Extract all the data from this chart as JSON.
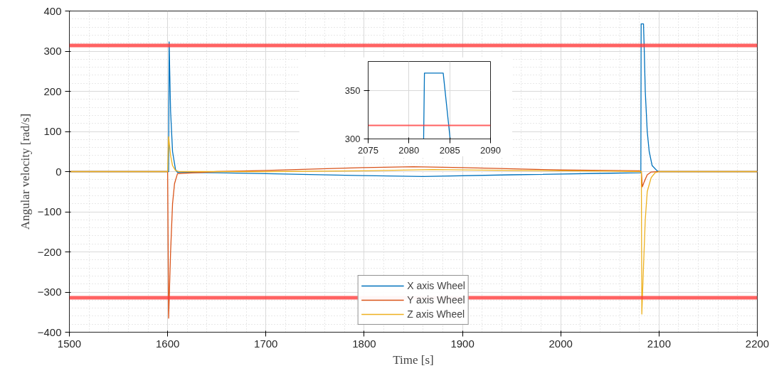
{
  "chart_data": [
    {
      "type": "line",
      "xlabel": "Time [s]",
      "ylabel": "Angular velocity [rad/s]",
      "xlim": [
        1500,
        2200
      ],
      "xticks": [
        1500,
        1600,
        1700,
        1800,
        1900,
        2000,
        2100,
        2200
      ],
      "ylim": [
        -400,
        400
      ],
      "yticks": [
        -400,
        -300,
        -200,
        -100,
        0,
        100,
        200,
        300,
        400
      ],
      "grid": true,
      "legend": "bottom",
      "ref_lines": [
        {
          "axis": "y",
          "value": 314,
          "color": "#ff3b3b"
        },
        {
          "axis": "y",
          "value": -314,
          "color": "#ff3b3b"
        }
      ],
      "series": [
        {
          "name": "X axis Wheel",
          "color": "#0072bd",
          "x": [
            1500,
            1600,
            1601,
            1601.5,
            1603,
            1605,
            1608,
            1610,
            1650,
            1700,
            1800,
            1860,
            1950,
            2050,
            2081.5,
            2081.8,
            2084.2,
            2085,
            2086,
            2088,
            2090,
            2093,
            2098,
            2100,
            2200
          ],
          "values": [
            0,
            0,
            0,
            323,
            150,
            50,
            5,
            -2,
            -3,
            -5,
            -10,
            -12,
            -8,
            -4,
            -3,
            368,
            368,
            300,
            200,
            100,
            50,
            15,
            2,
            0,
            0
          ]
        },
        {
          "name": "Y axis Wheel",
          "color": "#d95319",
          "x": [
            1500,
            1600,
            1601,
            1603,
            1605,
            1607,
            1610,
            1650,
            1700,
            1800,
            1850,
            1900,
            2000,
            2080,
            2082,
            2083,
            2085,
            2088,
            2092,
            2100,
            2200
          ],
          "values": [
            0,
            0,
            -365,
            -200,
            -80,
            -30,
            -5,
            0,
            3,
            10,
            12,
            10,
            4,
            2,
            0,
            -38,
            -25,
            -8,
            -1,
            0,
            0
          ]
        },
        {
          "name": "Z axis Wheel",
          "color": "#edb120",
          "x": [
            1500,
            1600,
            1601,
            1603,
            1605,
            1608,
            1612,
            1700,
            1800,
            1870,
            1950,
            2050,
            2082,
            2082.5,
            2084,
            2086,
            2088,
            2092,
            2096,
            2100,
            2200
          ],
          "values": [
            0,
            0,
            87,
            40,
            15,
            3,
            0,
            0,
            2,
            5,
            3,
            1,
            0,
            -355,
            -250,
            -120,
            -50,
            -15,
            -3,
            0,
            0
          ]
        }
      ]
    },
    {
      "type": "line",
      "xlim": [
        2075,
        2090
      ],
      "xticks": [
        2075,
        2080,
        2085,
        2090
      ],
      "ylim": [
        300,
        380
      ],
      "yticks": [
        300,
        350
      ],
      "grid": true,
      "ref_lines": [
        {
          "axis": "y",
          "value": 314,
          "color": "#ff3b3b"
        }
      ],
      "series": [
        {
          "color": "#0072bd",
          "x": [
            2081.8,
            2081.9,
            2084.2,
            2085.05
          ],
          "values": [
            300,
            368,
            368,
            300
          ]
        }
      ]
    }
  ]
}
